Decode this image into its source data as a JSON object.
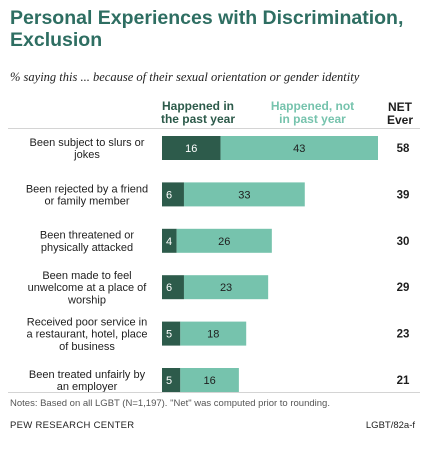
{
  "title_lines": [
    "Personal Experiences with Discrimination,",
    "Exclusion"
  ],
  "subtitle": "% saying this ... because of their sexual orientation or gender identity",
  "notes": "Notes: Based on all LGBT (N=1,197). \"Net\" was computed prior to rounding.",
  "source": "PEW RESEARCH CENTER",
  "code": "LGBT/82a-f",
  "colors": {
    "past_year": "#2d5b4b",
    "not_past_year": "#76c3ad",
    "title": "#2e6e62"
  },
  "chart_data": {
    "type": "bar",
    "orientation": "horizontal",
    "stacked": true,
    "categories": [
      [
        "Been subject to slurs or",
        "jokes"
      ],
      [
        "Been rejected by a friend",
        "or family member"
      ],
      [
        "Been threatened or",
        "physically attacked"
      ],
      [
        "Been made to feel",
        "unwelcome at a place of",
        "worship"
      ],
      [
        "Received poor service in",
        "a restaurant, hotel, place",
        "of business"
      ],
      [
        "Been treated unfairly by",
        "an employer"
      ]
    ],
    "series": [
      {
        "name": [
          "Happened in",
          "the past year"
        ],
        "values": [
          16,
          6,
          4,
          6,
          5,
          5
        ]
      },
      {
        "name": [
          "Happened, not",
          "in past year"
        ],
        "values": [
          43,
          33,
          26,
          23,
          18,
          16
        ]
      }
    ],
    "net_header": [
      "NET",
      "Ever"
    ],
    "net": [
      58,
      39,
      30,
      29,
      23,
      21
    ],
    "xlim": [
      0,
      59
    ],
    "grid": false,
    "legend": "column headers above bars"
  }
}
